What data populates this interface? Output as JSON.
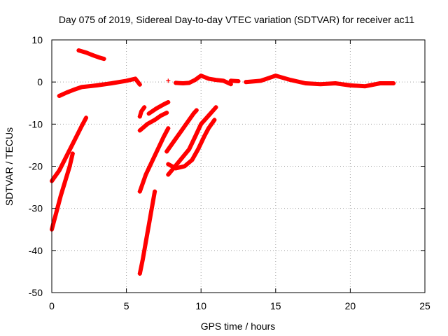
{
  "chart_data": {
    "type": "scatter",
    "title": "Day 075 of 2019, Sidereal Day-to-day VTEC variation (SDTVAR) for receiver ac11",
    "xlabel": "GPS time / hours",
    "ylabel": "SDTVAR / TECUs",
    "xlim": [
      0,
      25
    ],
    "ylim": [
      -50,
      10
    ],
    "xticks": [
      0,
      5,
      10,
      15,
      20,
      25
    ],
    "yticks": [
      10,
      0,
      -10,
      -20,
      -30,
      -40,
      -50
    ],
    "marker": "+",
    "color": "#ff0000",
    "grid": true,
    "series": [
      {
        "name": "arc1",
        "points": [
          [
            0.0,
            -23.5
          ],
          [
            0.5,
            -21
          ],
          [
            1.0,
            -17.5
          ],
          [
            1.5,
            -14
          ],
          [
            2.0,
            -10.5
          ],
          [
            2.3,
            -8.5
          ]
        ]
      },
      {
        "name": "arc2",
        "points": [
          [
            0.0,
            -35
          ],
          [
            0.3,
            -31
          ],
          [
            0.6,
            -27
          ],
          [
            0.9,
            -23.5
          ],
          [
            1.2,
            -20
          ],
          [
            1.4,
            -17
          ]
        ]
      },
      {
        "name": "arc3",
        "points": [
          [
            1.8,
            7.5
          ],
          [
            2.3,
            7.0
          ],
          [
            2.8,
            6.3
          ],
          [
            3.2,
            5.8
          ],
          [
            3.5,
            5.5
          ]
        ]
      },
      {
        "name": "arc4",
        "points": [
          [
            0.5,
            -3.3
          ],
          [
            1.0,
            -2.5
          ],
          [
            1.5,
            -1.8
          ],
          [
            2.0,
            -1.2
          ],
          [
            3.0,
            -0.8
          ],
          [
            4.0,
            -0.3
          ],
          [
            5.0,
            0.3
          ],
          [
            5.6,
            0.8
          ],
          [
            5.9,
            -0.6
          ]
        ]
      },
      {
        "name": "arc5",
        "points": [
          [
            5.9,
            -26
          ],
          [
            6.3,
            -22
          ],
          [
            6.7,
            -19
          ],
          [
            7.1,
            -16
          ],
          [
            7.5,
            -13
          ],
          [
            7.8,
            -11
          ]
        ]
      },
      {
        "name": "arc6",
        "points": [
          [
            5.9,
            -45.5
          ],
          [
            6.1,
            -42
          ],
          [
            6.3,
            -38
          ],
          [
            6.5,
            -34
          ],
          [
            6.7,
            -30
          ],
          [
            6.9,
            -26
          ]
        ]
      },
      {
        "name": "arc7",
        "points": [
          [
            5.9,
            -11.5
          ],
          [
            6.4,
            -10
          ],
          [
            6.9,
            -9
          ],
          [
            7.3,
            -8
          ],
          [
            7.7,
            -7.3
          ]
        ]
      },
      {
        "name": "arc8",
        "points": [
          [
            5.9,
            -8.2
          ],
          [
            6.0,
            -7
          ],
          [
            6.2,
            -6
          ]
        ]
      },
      {
        "name": "arc9",
        "points": [
          [
            6.5,
            -7.5
          ],
          [
            7.0,
            -6.3
          ],
          [
            7.5,
            -5.3
          ],
          [
            7.8,
            -4.8
          ]
        ]
      },
      {
        "name": "arc10",
        "points": [
          [
            7.7,
            -16.5
          ],
          [
            8.2,
            -14
          ],
          [
            8.7,
            -11.5
          ],
          [
            9.1,
            -9.5
          ],
          [
            9.5,
            -7.5
          ],
          [
            9.7,
            -6.7
          ]
        ]
      },
      {
        "name": "arc11",
        "points": [
          [
            7.8,
            -22
          ],
          [
            8.5,
            -19
          ],
          [
            9.2,
            -16
          ],
          [
            9.6,
            -13
          ],
          [
            10.0,
            -10
          ],
          [
            10.5,
            -8
          ],
          [
            11.0,
            -6
          ]
        ]
      },
      {
        "name": "arc12",
        "points": [
          [
            7.8,
            -19.5
          ],
          [
            8.3,
            -20.5
          ],
          [
            8.9,
            -20
          ],
          [
            9.4,
            -18.5
          ],
          [
            9.8,
            -16
          ],
          [
            10.2,
            -13
          ],
          [
            10.5,
            -11
          ],
          [
            10.9,
            -9
          ]
        ]
      },
      {
        "name": "arc13",
        "points": [
          [
            7.8,
            0.3
          ]
        ]
      },
      {
        "name": "arc14",
        "points": [
          [
            8.3,
            -0.2
          ],
          [
            8.8,
            -0.3
          ],
          [
            9.2,
            -0.2
          ],
          [
            9.6,
            0.5
          ],
          [
            10.0,
            1.5
          ],
          [
            10.5,
            0.8
          ],
          [
            11.0,
            0.5
          ],
          [
            11.5,
            0.3
          ],
          [
            12.0,
            -0.5
          ]
        ]
      },
      {
        "name": "arc15",
        "points": [
          [
            12.0,
            0.3
          ],
          [
            12.5,
            0.2
          ]
        ]
      },
      {
        "name": "arc16",
        "points": [
          [
            13.0,
            0.0
          ],
          [
            14.0,
            0.3
          ],
          [
            15.0,
            1.5
          ],
          [
            16.0,
            0.5
          ],
          [
            17.0,
            -0.3
          ],
          [
            18.0,
            -0.5
          ],
          [
            19.0,
            -0.3
          ],
          [
            20.0,
            -0.8
          ],
          [
            21.0,
            -1.0
          ],
          [
            22.0,
            -0.3
          ],
          [
            22.9,
            -0.3
          ]
        ]
      }
    ]
  },
  "ui": {
    "series_color": "#ff0000"
  }
}
